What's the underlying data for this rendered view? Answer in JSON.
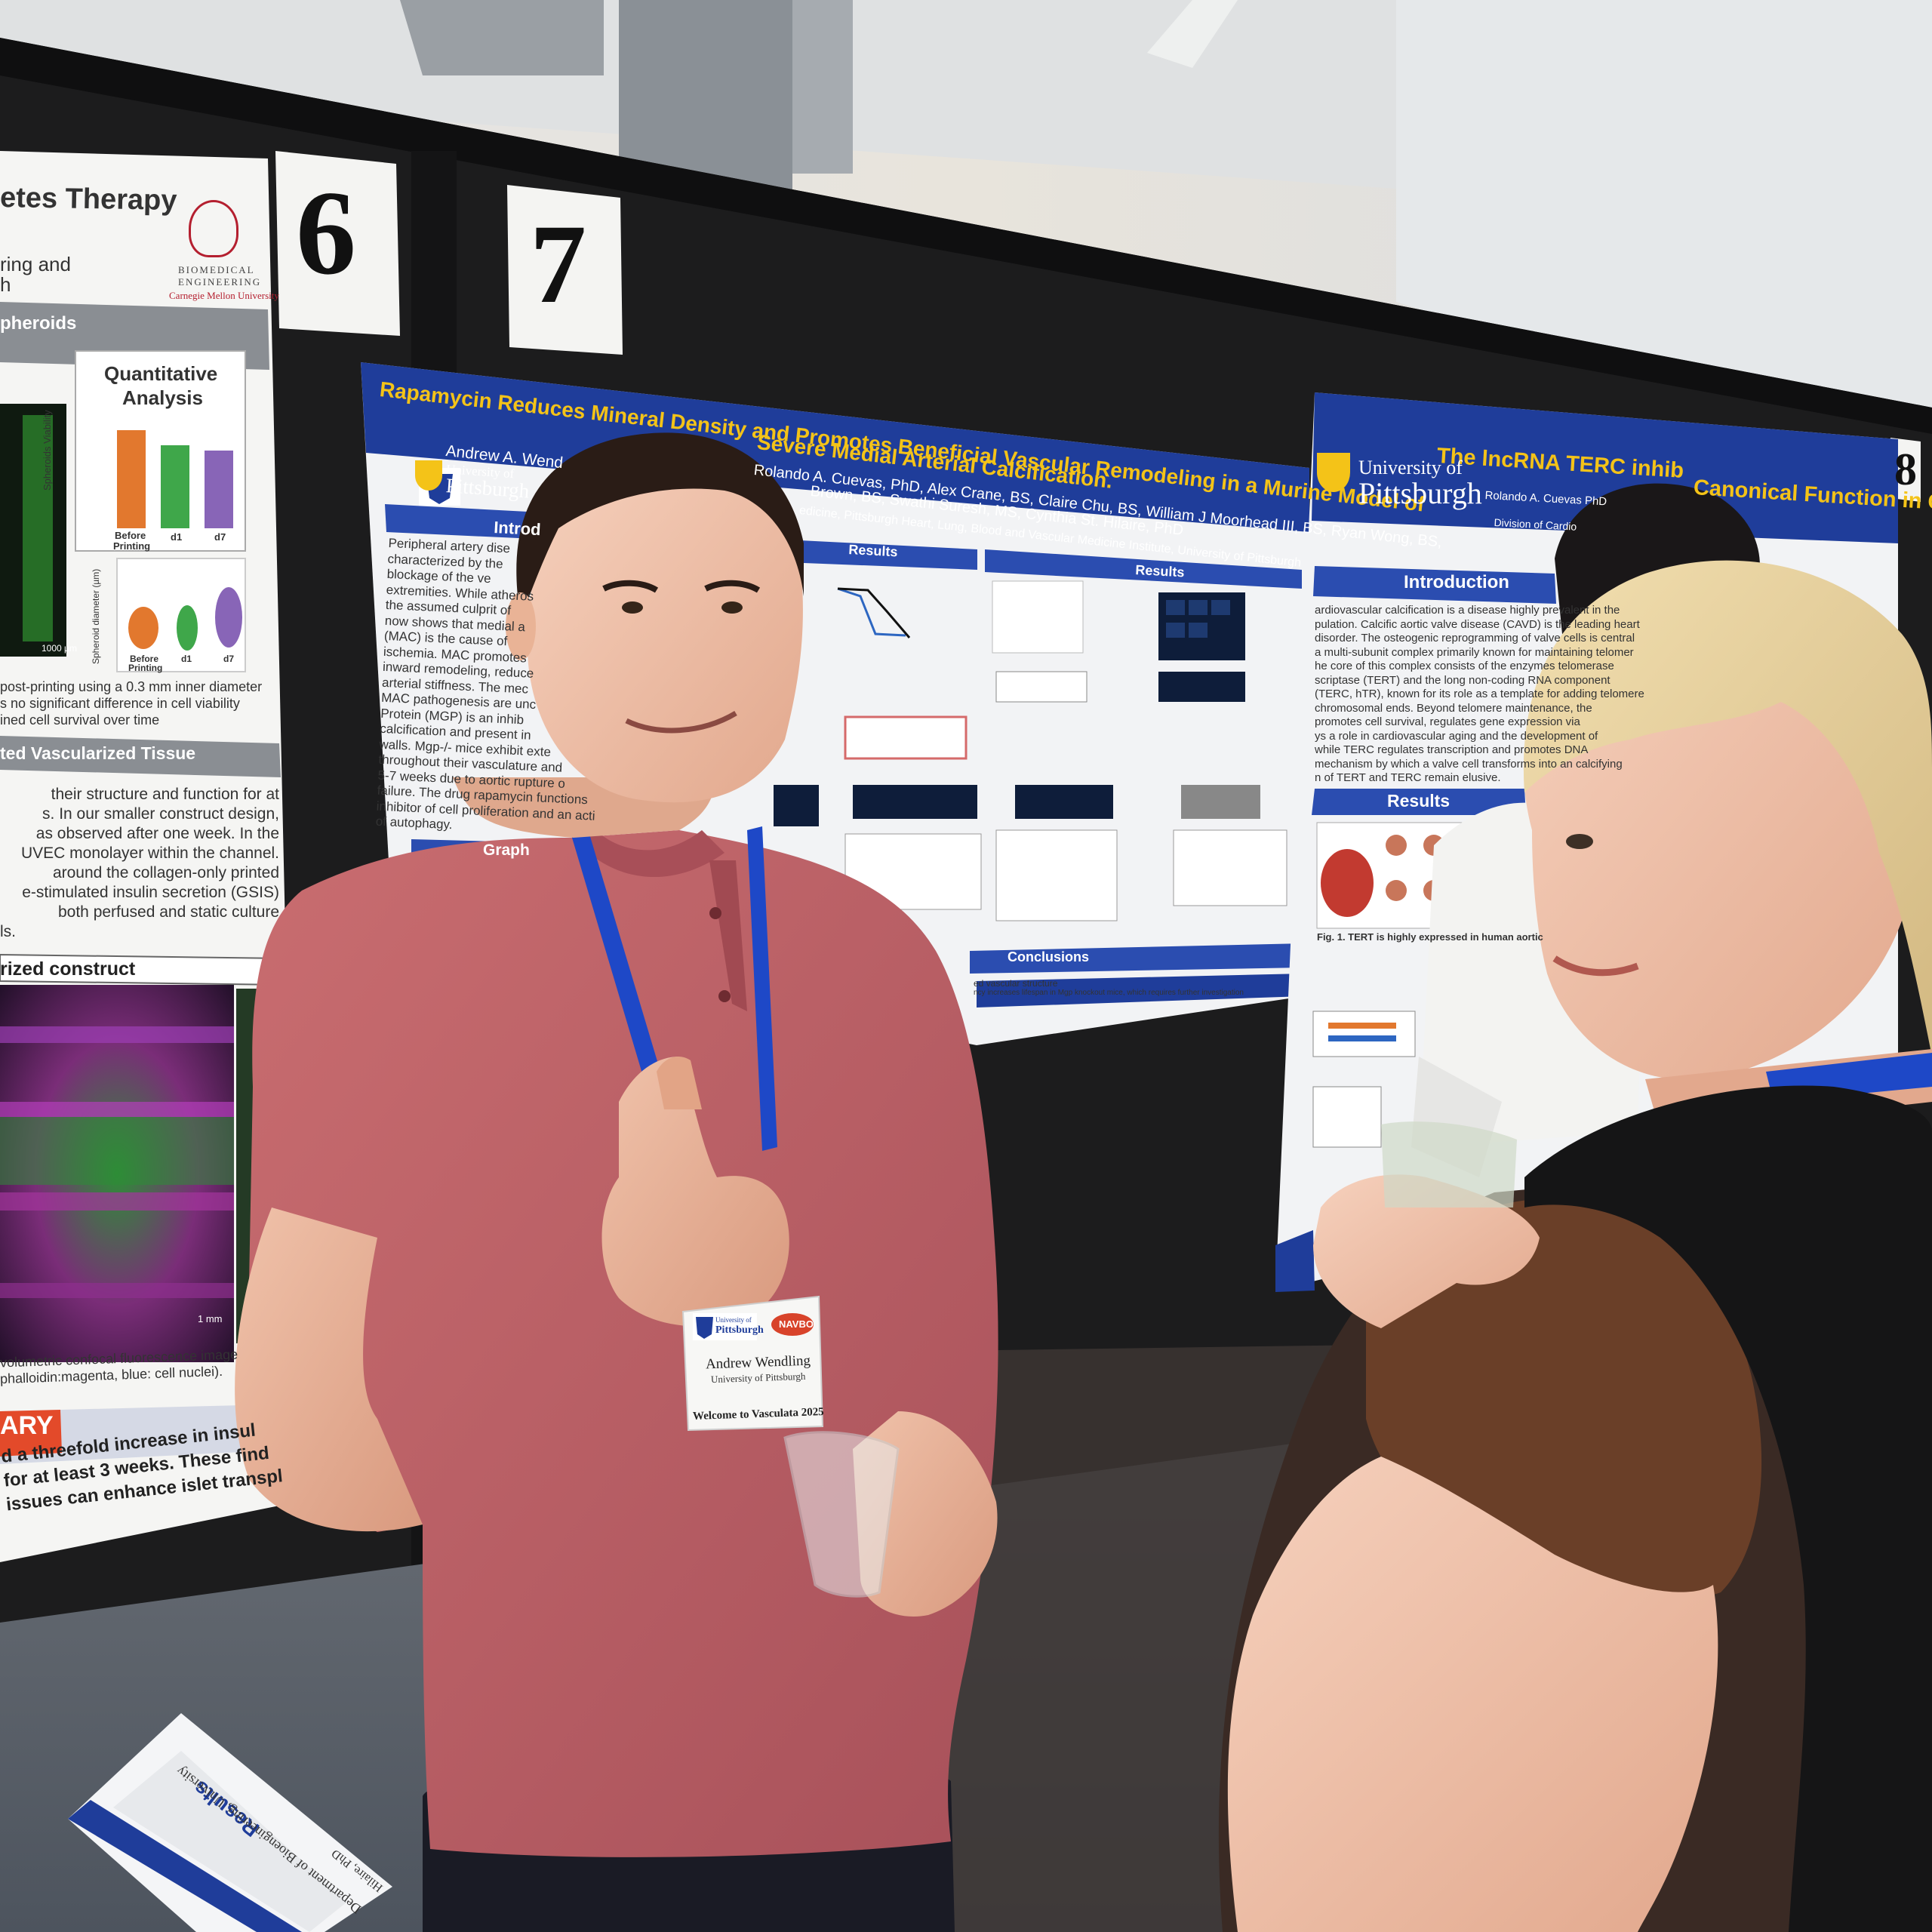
{
  "scene": {
    "colors": {
      "wall": "#d9dcdf",
      "ceiling": "#c2c6c9",
      "board": "#1c1c1d",
      "pitt_blue": "#1f3d9a",
      "title_gold": "#f4c318",
      "shirt": "#c06266",
      "carpet": "#58606b"
    }
  },
  "board_numbers": {
    "six": "6",
    "seven": "7",
    "eight": "8"
  },
  "left_poster": {
    "title": "etes Therapy",
    "subtitle_line1": "ring and",
    "subtitle_line2": "h",
    "logo_line1": "BIOMEDICAL",
    "logo_line2": "ENGINEERING",
    "logo_line3": "Carnegie Mellon University",
    "section_spheroids": "pheroids",
    "quant_title_1": "Quantitative",
    "quant_title_2": "Analysis",
    "scale_bar_1": "1000 µm",
    "ylabel_viability": "Spheroids Viability",
    "ylabel_diameter": "Spheroid diameter (µm)",
    "bar_before": "Before",
    "bar_printing": "Printing",
    "bar_d1": "d1",
    "bar_d7": "d7",
    "caption1_l1": "post-printing using a 0.3 mm inner diameter",
    "caption1_l2": "s no significant difference in cell viability",
    "caption1_l3": "ined cell survival over time",
    "section_vascular": "ted Vascularized Tissue",
    "body_l1": "their structure and function for at",
    "body_l2": "s. In our smaller construct design,",
    "body_l3": "as observed after one week. In the",
    "body_l4": "UVEC monolayer within the channel.",
    "body_l5": "around the collagen-only printed",
    "body_l6": "e-stimulated insulin secretion (GSIS)",
    "body_l7": "both perfused and static culture",
    "body_l8": "ls.",
    "section_construct": "rized construct",
    "scale_bar_2": "1 mm",
    "caption2_l1": "volumetric confocal fluorescence image",
    "caption2_l2": "phalloidin:magenta, blue: cell nuclei).",
    "summary_heading": "ARY",
    "summary_l1": "d a threefold increase in insul",
    "summary_l2": "for at least 3 weeks. These find",
    "summary_l3": "issues can enhance islet transpl"
  },
  "center_poster": {
    "title_line1": "Rapamycin Reduces Mineral Density and Promotes Beneficial Vascular Remodeling in a Murine Model of",
    "title_line2": "Severe Medial Arterial Calcification.",
    "author_lead": "Andrew A. Wend",
    "authors_line1": "Rolando A. Cuevas, PhD, Alex Crane, BS, Claire Chu, BS, William J Moorhead III, BS, Ryan Wong, BS,",
    "authors_line2": "Brown, BS, Swathi Suresh, MS, Cynthia St. Hilaire, PhD",
    "affiliation": "edicine, Pittsburgh Heart, Lung, Blood and Vascular Medicine Institute, University of Pittsburgh",
    "logo_line1": "University of",
    "logo_line2": "Pittsburgh",
    "section_intro": "Introd",
    "section_results_1": "Results",
    "section_results_2": "Results",
    "section_graph": "Graph",
    "section_conclusions": "Conclusions",
    "intro_l1": "Peripheral artery dise",
    "intro_l2": "characterized by the",
    "intro_l3": "blockage of the ve",
    "intro_l4": "extremities. While atheros",
    "intro_l5": "the assumed culprit of",
    "intro_l6": "now shows that medial a",
    "intro_l7": "(MAC) is the cause of",
    "intro_l8": "ischemia. MAC promotes",
    "intro_l9": "inward remodeling, reduce",
    "intro_l10": "arterial stiffness. The mec",
    "intro_l11": "MAC pathogenesis are unc",
    "intro_l12": "Protein (MGP) is an inhib",
    "intro_l13": "calcification and present in",
    "intro_l14": "walls. Mgp-/- mice exhibit exte",
    "intro_l15": "throughout their vasculature and",
    "intro_l16": "5-7 weeks due to aortic rupture o",
    "intro_l17": "failure. The drug rapamycin functions",
    "intro_l18": "inhibitor of cell proliferation and an acti",
    "intro_l19": "of autophagy.",
    "conclusion_l1": "ed vascular structure",
    "conclusion_l2": "ncy increases lifespan in Mgp knockout mice, which requires further investigation"
  },
  "right_poster": {
    "title": "The lncRNA TERC inhib",
    "title_tail": "Canonical Function in C",
    "logo_line1": "University of",
    "logo_line2": "Pittsburgh",
    "authors": "Rolando A. Cuevas PhD",
    "affiliation": "Division of Cardio",
    "section_intro": "Introduction",
    "section_results": "Results",
    "intro_l1": "ardiovascular calcification is a disease highly prevalent in the",
    "intro_l2": "pulation. Calcific aortic valve disease (CAVD) is the leading heart",
    "intro_l3": "disorder. The osteogenic reprogramming of valve cells is central",
    "intro_l4": "a multi-subunit complex primarily known for maintaining telomer",
    "intro_l5": "he core of this complex consists of the enzymes telomerase",
    "intro_l6": "scriptase (TERT) and the long non-coding RNA component",
    "intro_l7": "(TERC, hTR), known for its role as a template for adding telomere",
    "intro_l8": "chromosomal ends. Beyond telomere maintenance, the",
    "intro_l9": "promotes cell survival, regulates gene expression via",
    "intro_l10": "ys a role in cardiovascular aging and the development of",
    "intro_l11": "while TERC regulates transcription and promotes DNA",
    "intro_l12": "mechanism by which a valve cell transforms into an calcifying",
    "intro_l13": "n of TERT and TERC remain elusive.",
    "fig_caption": "Fig. 1. TERT is highly expressed in human aortic"
  },
  "badge": {
    "logo_line1": "University of",
    "logo_line2": "Pittsburgh",
    "logo_right": "NAVBO",
    "name": "Andrew Wendling",
    "institution": "University of Pittsburgh",
    "welcome": "Welcome to Vasculata 2025"
  },
  "rolled_poster": {
    "label_results": "Results",
    "label_dept": "Department of Bioengineering, University",
    "label_names": "Hilaire, PhD"
  }
}
